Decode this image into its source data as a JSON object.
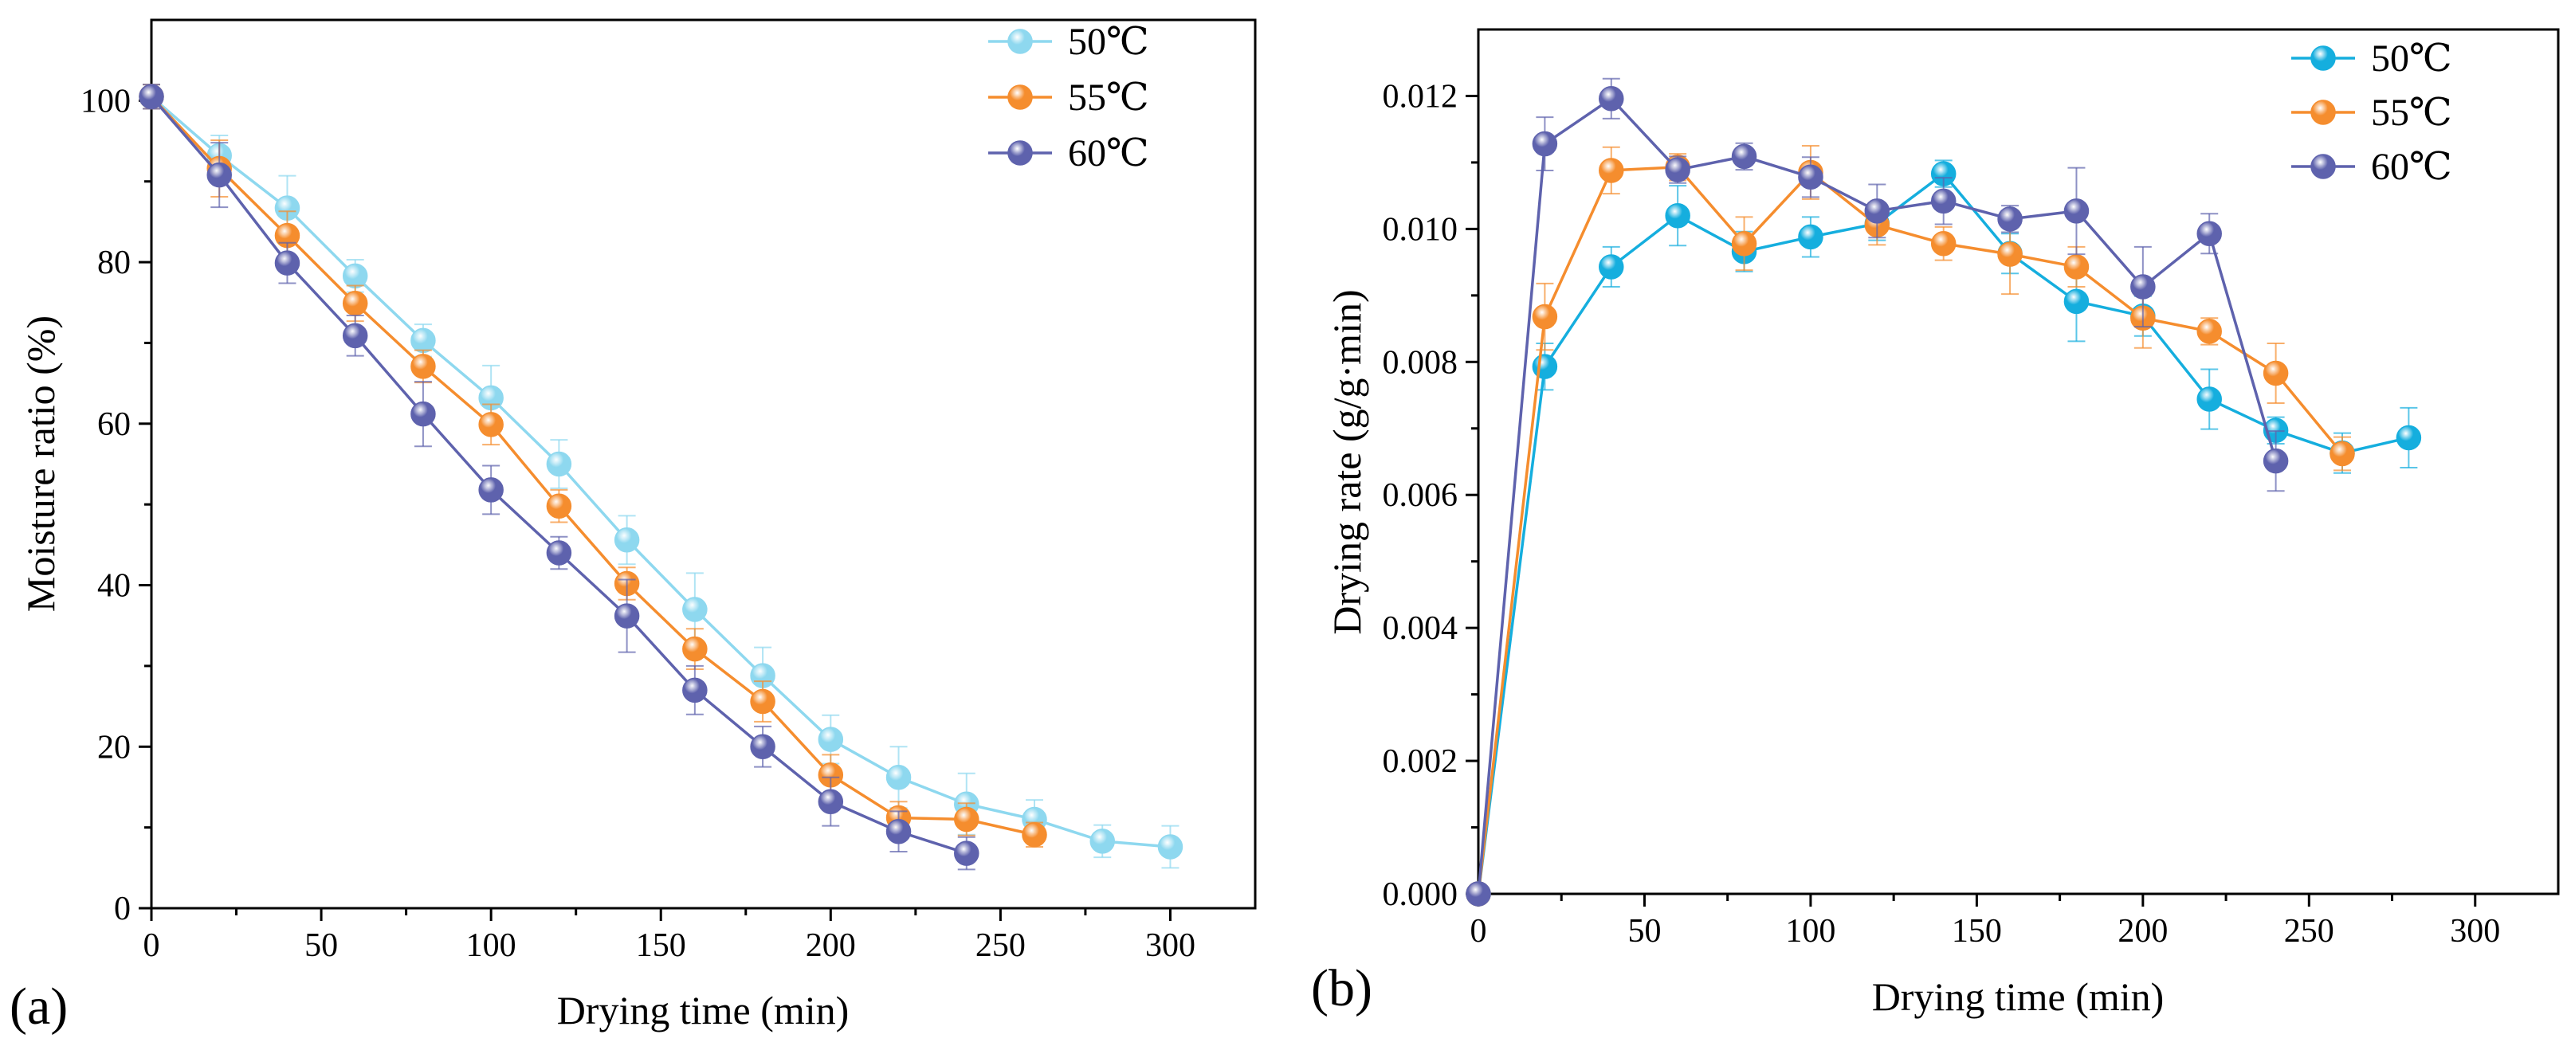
{
  "colors": {
    "a": {
      "50": "#8ed8ef",
      "55": "#f58d2e",
      "60": "#5e62ad"
    },
    "b": {
      "50": "#15aede",
      "55": "#f58d2e",
      "60": "#5e62ad"
    }
  },
  "chart_data": [
    {
      "panel": "(a)",
      "type": "line",
      "xlabel": "Drying time (min)",
      "ylabel": "Moisture ratio (%)",
      "xlim": [
        0,
        325
      ],
      "ylim": [
        0,
        110
      ],
      "xticks": [
        0,
        50,
        100,
        150,
        200,
        250,
        300
      ],
      "yticks": [
        0,
        20,
        40,
        60,
        80,
        100
      ],
      "xtick_labels": [
        "0",
        "50",
        "100",
        "150",
        "200",
        "250",
        "300"
      ],
      "ytick_labels": [
        "0",
        "20",
        "40",
        "60",
        "80",
        "100"
      ],
      "legend_position": "top-right",
      "series": [
        {
          "name": "50℃",
          "color_key": "50",
          "x": [
            0,
            20,
            40,
            60,
            80,
            100,
            120,
            140,
            160,
            180,
            200,
            220,
            240,
            260,
            280,
            300
          ],
          "y": [
            100.5,
            93.2,
            86.7,
            78.3,
            70.3,
            63.2,
            55.0,
            45.6,
            37.0,
            28.8,
            20.9,
            16.2,
            12.9,
            11.0,
            8.3,
            7.6
          ],
          "err": [
            1.5,
            2.5,
            4.0,
            2.0,
            2.0,
            4.0,
            3.0,
            3.0,
            4.5,
            3.5,
            3.0,
            3.8,
            3.8,
            2.4,
            2.0,
            2.6
          ]
        },
        {
          "name": "55℃",
          "color_key": "55",
          "x": [
            0,
            20,
            40,
            60,
            80,
            100,
            120,
            140,
            160,
            180,
            200,
            220,
            240,
            260
          ],
          "y": [
            100.5,
            91.6,
            83.3,
            74.9,
            67.1,
            59.9,
            49.8,
            40.2,
            32.1,
            25.6,
            16.5,
            11.2,
            11.0,
            9.1
          ],
          "err": [
            1.5,
            3.5,
            3.0,
            2.2,
            2.0,
            2.5,
            2.0,
            2.0,
            2.5,
            2.5,
            2.5,
            2.0,
            2.0,
            1.5
          ]
        },
        {
          "name": "60℃",
          "color_key": "60",
          "x": [
            0,
            20,
            40,
            60,
            80,
            100,
            120,
            140,
            160,
            180,
            200,
            220,
            240
          ],
          "y": [
            100.5,
            90.8,
            79.9,
            70.9,
            61.2,
            51.8,
            44.0,
            36.2,
            27.0,
            20.0,
            13.2,
            9.5,
            6.8
          ],
          "err": [
            1.5,
            4.0,
            2.5,
            2.5,
            4.0,
            3.0,
            2.0,
            4.5,
            3.0,
            2.5,
            3.0,
            2.5,
            2.0
          ]
        }
      ]
    },
    {
      "panel": "(b)",
      "type": "line",
      "xlabel": "Drying time (min)",
      "ylabel": "Drying rate (g/g·min)",
      "xlim": [
        0,
        325
      ],
      "ylim": [
        0,
        0.013
      ],
      "xticks": [
        0,
        50,
        100,
        150,
        200,
        250,
        300
      ],
      "yticks": [
        0,
        0.002,
        0.004,
        0.006,
        0.008,
        0.01,
        0.012
      ],
      "xtick_labels": [
        "0",
        "50",
        "100",
        "150",
        "200",
        "250",
        "300"
      ],
      "ytick_labels": [
        "0.000",
        "0.002",
        "0.004",
        "0.006",
        "0.008",
        "0.010",
        "0.012"
      ],
      "legend_position": "top-right",
      "series": [
        {
          "name": "50℃",
          "color_key": "50",
          "x": [
            0,
            20,
            40,
            60,
            80,
            100,
            120,
            140,
            160,
            180,
            200,
            220,
            240,
            260,
            280
          ],
          "y": [
            0,
            0.00793,
            0.00943,
            0.0102,
            0.00966,
            0.00988,
            0.01008,
            0.01083,
            0.00963,
            0.00891,
            0.00869,
            0.00744,
            0.00697,
            0.00663,
            0.00686
          ],
          "err": [
            0,
            0.00035,
            0.0003,
            0.00045,
            0.0003,
            0.0003,
            0.00025,
            0.0002,
            0.0003,
            0.0006,
            0.0003,
            0.00045,
            0.0002,
            0.0003,
            0.00045
          ]
        },
        {
          "name": "55℃",
          "color_key": "55",
          "x": [
            0,
            20,
            40,
            60,
            80,
            100,
            120,
            140,
            160,
            180,
            200,
            220,
            240,
            260
          ],
          "y": [
            0,
            0.00868,
            0.01088,
            0.01093,
            0.00978,
            0.01085,
            0.01006,
            0.00978,
            0.00962,
            0.00943,
            0.00866,
            0.00846,
            0.00783,
            0.00662
          ],
          "err": [
            0,
            0.0005,
            0.00035,
            0.0002,
            0.0004,
            0.0004,
            0.0003,
            0.00025,
            0.0006,
            0.0003,
            0.00045,
            0.0002,
            0.00045,
            0.00025
          ]
        },
        {
          "name": "60℃",
          "color_key": "60",
          "x": [
            0,
            20,
            40,
            60,
            80,
            100,
            120,
            140,
            160,
            180,
            200,
            220,
            240
          ],
          "y": [
            0,
            0.01128,
            0.01196,
            0.01089,
            0.01109,
            0.01078,
            0.01027,
            0.01042,
            0.01015,
            0.01027,
            0.00913,
            0.00993,
            0.00651
          ],
          "err": [
            0,
            0.0004,
            0.0003,
            0.0002,
            0.0002,
            0.0003,
            0.0004,
            0.00035,
            0.0002,
            0.00065,
            0.0006,
            0.0003,
            0.00045
          ]
        }
      ]
    }
  ]
}
